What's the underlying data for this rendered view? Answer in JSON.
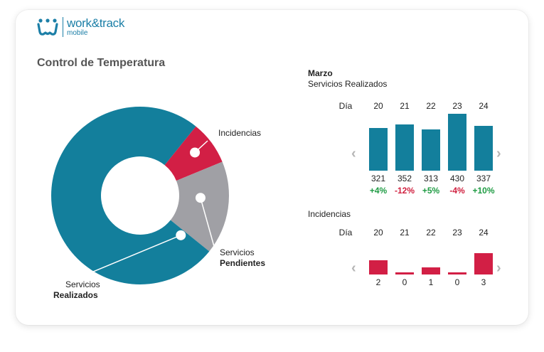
{
  "brand": {
    "name": "work&track",
    "sub": "mobile"
  },
  "title": "Control de Temperatura",
  "donut": {
    "slices": [
      {
        "label": "Incidencias",
        "value": 8,
        "color": "#d21f45"
      },
      {
        "label": "Servicios Pendientes",
        "value": 17,
        "color": "#a0a0a5"
      },
      {
        "label": "Servicios Realizados",
        "value": 75,
        "color": "#137f9c"
      }
    ],
    "labels": {
      "incidencias": "Incidencias",
      "pendientes_line1": "Servicios",
      "pendientes_line2": "Pendientes",
      "realizados_line1": "Servicios",
      "realizados_line2": "Realizados"
    }
  },
  "servicios": {
    "month": "Marzo",
    "subtitle": "Servicios Realizados",
    "day_label": "Día",
    "days": [
      "20",
      "21",
      "22",
      "23",
      "24"
    ],
    "values": [
      321,
      352,
      313,
      430,
      337
    ],
    "changes": [
      "+4%",
      "-12%",
      "+5%",
      "-4%",
      "+10%"
    ],
    "color": "#137f9c"
  },
  "incidencias": {
    "title": "Incidencias",
    "day_label": "Día",
    "days": [
      "20",
      "21",
      "22",
      "23",
      "24"
    ],
    "values": [
      2,
      0,
      1,
      0,
      3
    ],
    "color": "#d21f45"
  },
  "nav": {
    "prev": "‹",
    "next": "›"
  }
}
